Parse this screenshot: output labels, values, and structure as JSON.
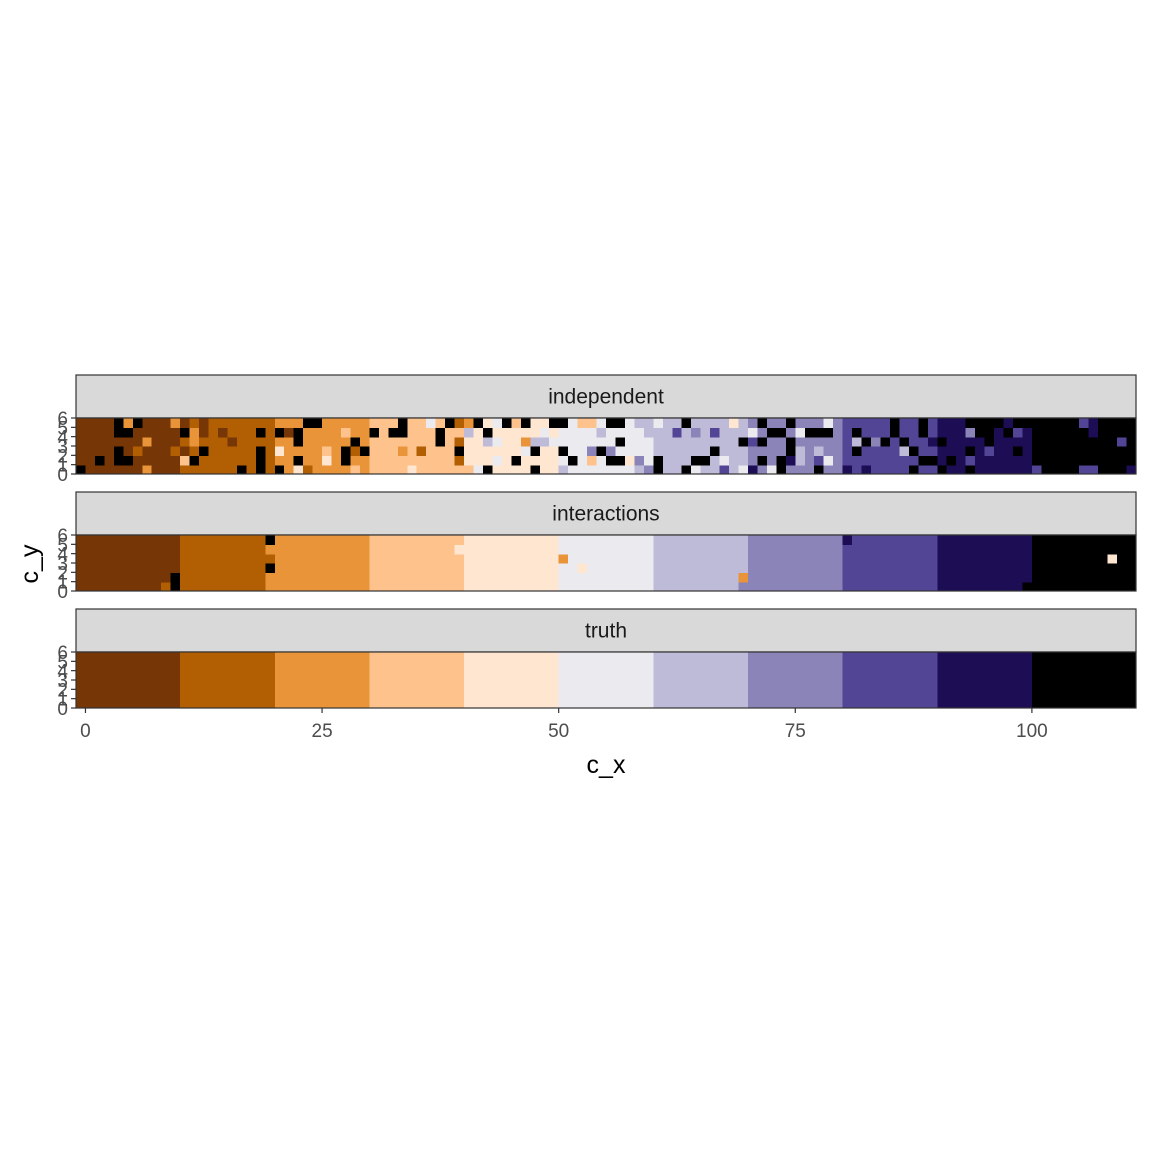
{
  "chart_data": {
    "type": "heatmap",
    "xlabel": "c_x",
    "ylabel": "c_y",
    "x_ticks": [
      0,
      25,
      50,
      75,
      100
    ],
    "y_ticks": [
      0,
      1,
      2,
      3,
      4,
      5,
      6
    ],
    "xlim": [
      -1,
      111
    ],
    "ylim": [
      0,
      6
    ],
    "grid": false,
    "legend": "none",
    "palette": [
      "#7f3b08",
      "#b35806",
      "#e08214",
      "#fdb863",
      "#fee0b6",
      "#f7f7f7",
      "#d8daeb",
      "#b2abd2",
      "#8073ac",
      "#542788",
      "#2d004b"
    ],
    "palette_display": [
      "#763606",
      "#b25e03",
      "#e99438",
      "#fec28c",
      "#fee6d0",
      "#ebebef",
      "#bdbbd7",
      "#8a84b8",
      "#524595",
      "#1c0d55",
      "#000000"
    ],
    "bands": [
      {
        "from": -1,
        "to": 10,
        "class": 0
      },
      {
        "from": 10,
        "to": 20,
        "class": 1
      },
      {
        "from": 20,
        "to": 30,
        "class": 2
      },
      {
        "from": 30,
        "to": 40,
        "class": 3
      },
      {
        "from": 40,
        "to": 50,
        "class": 4
      },
      {
        "from": 50,
        "to": 60,
        "class": 5
      },
      {
        "from": 60,
        "to": 70,
        "class": 6
      },
      {
        "from": 70,
        "to": 80,
        "class": 7
      },
      {
        "from": 80,
        "to": 90,
        "class": 8
      },
      {
        "from": 90,
        "to": 100,
        "class": 9
      },
      {
        "from": 100,
        "to": 111,
        "class": 10
      }
    ],
    "panels": [
      {
        "name": "independent",
        "noise": 0.38,
        "seed": 12345,
        "cells": []
      },
      {
        "name": "interactions",
        "noise": 0,
        "seed": 0,
        "cells": [
          {
            "x": 19,
            "y": 5,
            "c": 10
          },
          {
            "x": 19,
            "y": 4,
            "c": 2
          },
          {
            "x": 19,
            "y": 2,
            "c": 10
          },
          {
            "x": 19,
            "y": 1,
            "c": 2
          },
          {
            "x": 19,
            "y": 0,
            "c": 2
          },
          {
            "x": 9,
            "y": 1,
            "c": 10
          },
          {
            "x": 9,
            "y": 0,
            "c": 10
          },
          {
            "x": 8,
            "y": 0,
            "c": 1
          },
          {
            "x": 39,
            "y": 4,
            "c": 4
          },
          {
            "x": 39,
            "y": 1,
            "c": 3
          },
          {
            "x": 39,
            "y": 0,
            "c": 3
          },
          {
            "x": 50,
            "y": 3,
            "c": 2
          },
          {
            "x": 52,
            "y": 2,
            "c": 4
          },
          {
            "x": 50,
            "y": 1,
            "c": 5
          },
          {
            "x": 50,
            "y": 0,
            "c": 5
          },
          {
            "x": 69,
            "y": 1,
            "c": 2
          },
          {
            "x": 69,
            "y": 0,
            "c": 7
          },
          {
            "x": 80,
            "y": 5,
            "c": 9
          },
          {
            "x": 80,
            "y": 4,
            "c": 8
          },
          {
            "x": 99,
            "y": 0,
            "c": 10
          },
          {
            "x": 108,
            "y": 3,
            "c": 4
          }
        ]
      },
      {
        "name": "truth",
        "noise": 0,
        "seed": 0,
        "cells": []
      }
    ]
  }
}
